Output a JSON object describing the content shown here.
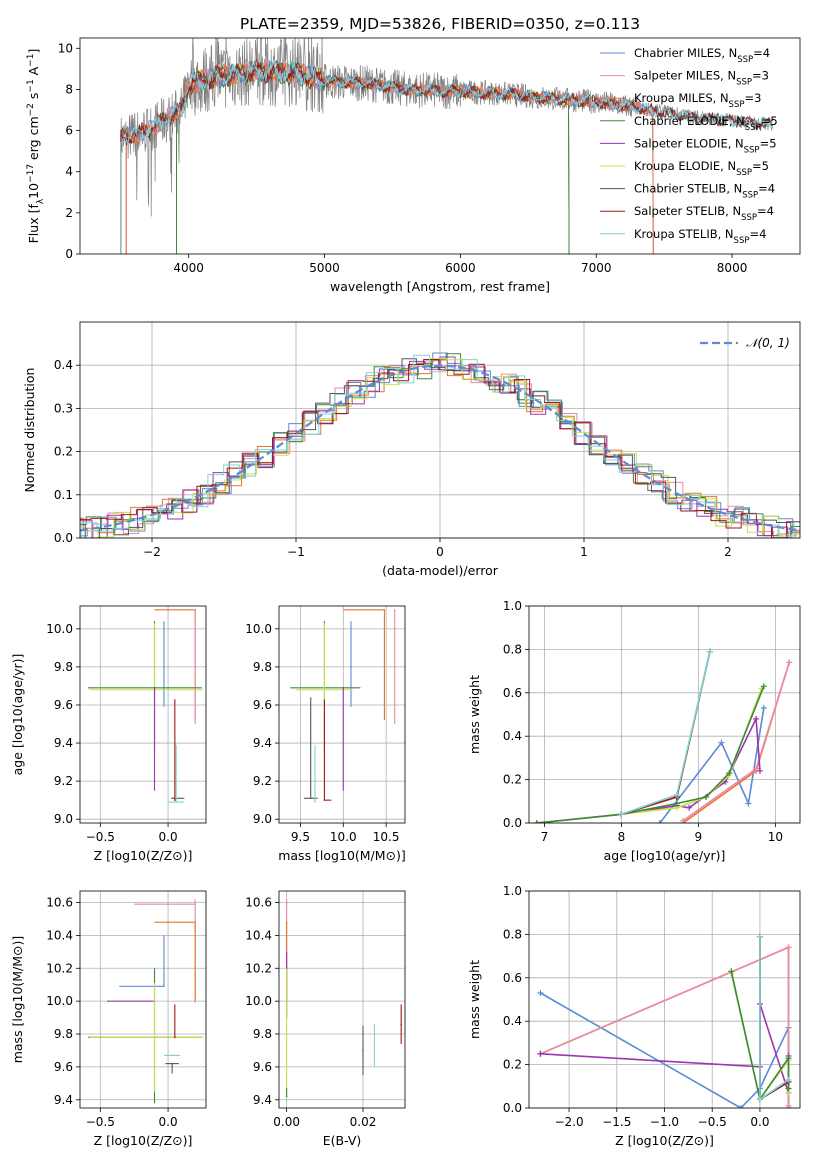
{
  "figure_title": "PLATE=2359, MJD=53826, FIBERID=0350, z=0.113",
  "colors": {
    "chabrier_miles": "#5b8ad8",
    "salpeter_miles": "#e88aa6",
    "kroupa_miles": "#e8742e",
    "chabrier_elodie": "#3a8a3a",
    "salpeter_elodie": "#9a36b0",
    "kroupa_elodie": "#c8e04a",
    "chabrier_stelib": "#555555",
    "salpeter_stelib": "#a01818",
    "kroupa_stelib": "#7ed4d4",
    "gauss": "#5b8ad8",
    "grid": "#b0b0b0"
  },
  "chart_data": [
    {
      "id": "spectrum",
      "type": "line",
      "xlabel": "wavelength [Angstrom, rest frame]",
      "ylabel": "Flux [f_λ 10^-17 erg cm^-2 s^-1 A^-1]",
      "xlim": [
        3200,
        8500
      ],
      "ylim": [
        0,
        10.5
      ],
      "xticks": [
        4000,
        5000,
        6000,
        7000,
        8000
      ],
      "yticks": [
        0,
        2,
        4,
        6,
        8,
        10
      ],
      "grid": false,
      "legend_position": "right",
      "legend": [
        {
          "key": "chabrier_miles",
          "label": "Chabrier MILES, N",
          "sub": "SSP",
          "suffix": "=4"
        },
        {
          "key": "salpeter_miles",
          "label": "Salpeter MILES, N",
          "sub": "SSP",
          "suffix": "=3"
        },
        {
          "key": "kroupa_miles",
          "label": "Kroupa MILES, N",
          "sub": "SSP",
          "suffix": "=3"
        },
        {
          "key": "chabrier_elodie",
          "label": "Chabrier ELODIE, N",
          "sub": "SSP",
          "suffix": "=5"
        },
        {
          "key": "salpeter_elodie",
          "label": "Salpeter ELODIE, N",
          "sub": "SSP",
          "suffix": "=5"
        },
        {
          "key": "kroupa_elodie",
          "label": "Kroupa ELODIE, N",
          "sub": "SSP",
          "suffix": "=5"
        },
        {
          "key": "chabrier_stelib",
          "label": "Chabrier STELIB, N",
          "sub": "SSP",
          "suffix": "=4"
        },
        {
          "key": "salpeter_stelib",
          "label": "Salpeter STELIB, N",
          "sub": "SSP",
          "suffix": "=4"
        },
        {
          "key": "kroupa_stelib",
          "label": "Kroupa STELIB, N",
          "sub": "SSP",
          "suffix": "=4"
        }
      ],
      "continuum": {
        "x": [
          3500,
          3650,
          3800,
          3950,
          4000,
          4200,
          4500,
          4800,
          5000,
          5300,
          5600,
          6000,
          6300,
          6600,
          7000,
          7400,
          7800,
          8300
        ],
        "y": [
          5.6,
          5.9,
          6.4,
          7.0,
          8.3,
          8.6,
          8.9,
          8.8,
          8.4,
          8.3,
          8.0,
          7.9,
          7.8,
          7.6,
          7.4,
          7.0,
          6.6,
          6.3
        ]
      },
      "model_ranges": {
        "chabrier_miles": [
          3540,
          7420
        ],
        "salpeter_miles": [
          3540,
          7420
        ],
        "kroupa_miles": [
          3540,
          7420
        ],
        "kroupa_elodie": [
          3910,
          6800
        ],
        "salpeter_elodie": [
          3910,
          6800
        ],
        "chabrier_elodie": [
          3910,
          6800
        ],
        "chabrier_stelib": [
          3500,
          8300
        ],
        "salpeter_stelib": [
          3500,
          8300
        ],
        "kroupa_stelib": [
          3500,
          8300
        ]
      }
    },
    {
      "id": "residuals",
      "type": "histogram",
      "xlabel": "(data-model)/error",
      "ylabel": "Normed distribution",
      "xlim": [
        -2.5,
        2.5
      ],
      "ylim": [
        0,
        0.5
      ],
      "xticks": [
        -2,
        -1,
        0,
        1,
        2
      ],
      "yticks": [
        0.0,
        0.1,
        0.2,
        0.3,
        0.4
      ],
      "grid": true,
      "gauss_label": "𝒩(0, 1)",
      "gauss_label_prefix": "",
      "legend_position": "top-right"
    },
    {
      "id": "age_vs_Z",
      "type": "errorbar",
      "xlabel": "Z [log10(Z/Z⊙)]",
      "ylabel": "age [log10(age/yr)]",
      "xlim": [
        -0.65,
        0.28
      ],
      "ylim": [
        8.98,
        10.12
      ],
      "xticks": [
        -0.5,
        0.0
      ],
      "yticks": [
        9.0,
        9.2,
        9.4,
        9.6,
        9.8,
        10.0
      ],
      "grid": true,
      "points": [
        {
          "key": "kroupa_miles",
          "x": 0.2,
          "y": 10.1,
          "xerr": [
            0.3,
            0.0
          ],
          "yerr": [
            0.58,
            0.0
          ]
        },
        {
          "key": "salpeter_miles",
          "x": 0.2,
          "y": 10.1,
          "xerr": [
            0.0,
            0.0
          ],
          "yerr": [
            0.6,
            0.0
          ]
        },
        {
          "key": "chabrier_miles",
          "x": -0.03,
          "y": 9.8,
          "xerr": [
            0.0,
            0.0
          ],
          "yerr": [
            0.21,
            0.24
          ]
        },
        {
          "key": "chabrier_elodie",
          "x": -0.1,
          "y": 9.69,
          "xerr": [
            0.49,
            0.35
          ],
          "yerr": [
            0.33,
            0.35
          ]
        },
        {
          "key": "kroupa_elodie",
          "x": -0.1,
          "y": 9.68,
          "xerr": [
            0.48,
            0.36
          ],
          "yerr": [
            0.3,
            0.35
          ]
        },
        {
          "key": "salpeter_elodie",
          "x": -0.1,
          "y": 9.69,
          "xerr": [
            0.0,
            0.0
          ],
          "yerr": [
            0.54,
            0.0
          ]
        },
        {
          "key": "chabrier_stelib",
          "x": 0.03,
          "y": 9.11,
          "xerr": [
            0.0,
            0.09
          ],
          "yerr": [
            0.0,
            0.0
          ]
        },
        {
          "key": "salpeter_stelib",
          "x": 0.05,
          "y": 9.1,
          "xerr": [
            0.0,
            0.0
          ],
          "yerr": [
            0.0,
            0.53
          ]
        },
        {
          "key": "kroupa_stelib",
          "x": 0.06,
          "y": 9.09,
          "xerr": [
            0.06,
            0.06
          ],
          "yerr": [
            0.0,
            0.3
          ]
        }
      ]
    },
    {
      "id": "age_vs_mass",
      "type": "errorbar",
      "xlabel": "mass [log10(M/M⊙)]",
      "ylabel": "",
      "xlim": [
        9.25,
        10.72
      ],
      "ylim": [
        8.98,
        10.12
      ],
      "xticks": [
        9.5,
        10.0,
        10.5
      ],
      "yticks": [
        9.0,
        9.2,
        9.4,
        9.6,
        9.8,
        10.0
      ],
      "grid": true,
      "points": [
        {
          "key": "kroupa_miles",
          "x": 10.48,
          "y": 10.1,
          "xerr": [
            0.48,
            0.0
          ],
          "yerr": [
            0.58,
            0.0
          ]
        },
        {
          "key": "salpeter_miles",
          "x": 10.6,
          "y": 10.1,
          "xerr": [
            0.0,
            0.0
          ],
          "yerr": [
            0.6,
            0.0
          ]
        },
        {
          "key": "chabrier_miles",
          "x": 10.09,
          "y": 9.8,
          "xerr": [
            0.0,
            0.0
          ],
          "yerr": [
            0.21,
            0.24
          ]
        },
        {
          "key": "chabrier_elodie",
          "x": 9.78,
          "y": 9.69,
          "xerr": [
            0.4,
            0.42
          ],
          "yerr": [
            0.33,
            0.35
          ]
        },
        {
          "key": "kroupa_elodie",
          "x": 9.78,
          "y": 9.68,
          "xerr": [
            0.33,
            0.33
          ],
          "yerr": [
            0.3,
            0.35
          ]
        },
        {
          "key": "salpeter_elodie",
          "x": 10.0,
          "y": 9.69,
          "xerr": [
            0.0,
            0.0
          ],
          "yerr": [
            0.54,
            0.0
          ]
        },
        {
          "key": "chabrier_stelib",
          "x": 9.62,
          "y": 9.11,
          "xerr": [
            0.08,
            0.08
          ],
          "yerr": [
            0.0,
            0.53
          ]
        },
        {
          "key": "salpeter_stelib",
          "x": 9.78,
          "y": 9.1,
          "xerr": [
            0.0,
            0.08
          ],
          "yerr": [
            0.0,
            0.53
          ]
        },
        {
          "key": "kroupa_stelib",
          "x": 9.67,
          "y": 9.09,
          "xerr": [
            0.0,
            0.0
          ],
          "yerr": [
            0.0,
            0.3
          ]
        }
      ]
    },
    {
      "id": "weight_vs_age",
      "type": "line",
      "xlabel": "age [log10(age/yr)]",
      "ylabel": "mass weight",
      "xlim": [
        6.8,
        10.32
      ],
      "ylim": [
        0,
        1.0
      ],
      "xticks": [
        7,
        8,
        9,
        10
      ],
      "yticks": [
        0.0,
        0.2,
        0.4,
        0.6,
        0.8,
        1.0
      ],
      "grid": true,
      "series": [
        {
          "key": "chabrier_miles",
          "x": [
            8.5,
            9.3,
            9.65,
            9.85
          ],
          "y": [
            0.0,
            0.37,
            0.09,
            0.53
          ]
        },
        {
          "key": "kroupa_miles",
          "x": [
            8.8,
            9.75,
            10.18
          ],
          "y": [
            0.0,
            0.24,
            0.74
          ]
        },
        {
          "key": "salpeter_miles",
          "x": [
            8.8,
            9.75,
            10.18
          ],
          "y": [
            0.01,
            0.25,
            0.74
          ]
        },
        {
          "key": "salpeter_elodie",
          "x": [
            6.9,
            8.0,
            8.72,
            8.88,
            9.35,
            9.75,
            9.8
          ],
          "y": [
            0.0,
            0.04,
            0.08,
            0.07,
            0.19,
            0.48,
            0.24
          ]
        },
        {
          "key": "kroupa_elodie",
          "x": [
            6.9,
            8.0,
            8.72,
            9.1,
            9.4,
            9.82
          ],
          "y": [
            0.0,
            0.04,
            0.07,
            0.12,
            0.22,
            0.62
          ]
        },
        {
          "key": "chabrier_elodie",
          "x": [
            6.9,
            8.0,
            8.72,
            9.1,
            9.4,
            9.85
          ],
          "y": [
            0.0,
            0.04,
            0.09,
            0.12,
            0.23,
            0.63
          ]
        },
        {
          "key": "chabrier_stelib",
          "x": [
            8.0,
            8.72,
            9.15
          ],
          "y": [
            0.04,
            0.12,
            0.79
          ]
        },
        {
          "key": "salpeter_stelib",
          "x": [
            8.0,
            8.72,
            9.15
          ],
          "y": [
            0.04,
            0.12,
            0.79
          ]
        },
        {
          "key": "kroupa_stelib",
          "x": [
            8.0,
            8.72,
            9.15
          ],
          "y": [
            0.04,
            0.13,
            0.79
          ]
        }
      ]
    },
    {
      "id": "mass_vs_Z",
      "type": "errorbar",
      "xlabel": "Z [log10(Z/Z⊙)]",
      "ylabel": "mass [log10(M/M⊙)]",
      "xlim": [
        -0.65,
        0.28
      ],
      "ylim": [
        9.35,
        10.67
      ],
      "xticks": [
        -0.5,
        0.0
      ],
      "yticks": [
        9.4,
        9.6,
        9.8,
        10.0,
        10.2,
        10.4,
        10.6
      ],
      "grid": true,
      "points": [
        {
          "key": "salpeter_miles",
          "x": 0.2,
          "y": 10.59,
          "xerr": [
            0.45,
            0.0
          ],
          "yerr": [
            0.6,
            0.03
          ]
        },
        {
          "key": "kroupa_miles",
          "x": 0.2,
          "y": 10.48,
          "xerr": [
            0.3,
            0.0
          ],
          "yerr": [
            0.48,
            0.0
          ]
        },
        {
          "key": "chabrier_miles",
          "x": -0.03,
          "y": 10.09,
          "xerr": [
            0.33,
            0.0
          ],
          "yerr": [
            0.0,
            0.31
          ]
        },
        {
          "key": "salpeter_elodie",
          "x": -0.1,
          "y": 10.0,
          "xerr": [
            0.35,
            0.0
          ],
          "yerr": [
            0.0,
            0.0
          ]
        },
        {
          "key": "chabrier_elodie",
          "x": -0.1,
          "y": 9.78,
          "xerr": [
            0.49,
            0.35
          ],
          "yerr": [
            0.4,
            0.42
          ]
        },
        {
          "key": "kroupa_elodie",
          "x": -0.1,
          "y": 9.78,
          "xerr": [
            0.48,
            0.36
          ],
          "yerr": [
            0.33,
            0.33
          ]
        },
        {
          "key": "chabrier_stelib",
          "x": 0.03,
          "y": 9.62,
          "xerr": [
            0.05,
            0.05
          ],
          "yerr": [
            0.06,
            0.0
          ]
        },
        {
          "key": "salpeter_stelib",
          "x": 0.05,
          "y": 9.78,
          "xerr": [
            0.0,
            0.0
          ],
          "yerr": [
            0.0,
            0.2
          ]
        },
        {
          "key": "kroupa_stelib",
          "x": 0.03,
          "y": 9.67,
          "xerr": [
            0.06,
            0.06
          ],
          "yerr": [
            0.0,
            0.0
          ]
        }
      ]
    },
    {
      "id": "mass_vs_ebv",
      "type": "errorbar",
      "xlabel": "E(B-V)",
      "ylabel": "",
      "xlim": [
        -0.002,
        0.031
      ],
      "ylim": [
        9.35,
        10.67
      ],
      "xticks": [
        0.0,
        0.02
      ],
      "yticks": [
        9.4,
        9.6,
        9.8,
        10.0,
        10.2,
        10.4,
        10.6
      ],
      "grid": true,
      "points": [
        {
          "key": "salpeter_miles",
          "x": 0.0,
          "y": 10.59,
          "xerr": [
            0.0,
            0.0
          ],
          "yerr": [
            0.6,
            0.03
          ]
        },
        {
          "key": "kroupa_miles",
          "x": 0.0,
          "y": 10.48,
          "xerr": [
            0.0,
            0.0
          ],
          "yerr": [
            0.48,
            0.0
          ]
        },
        {
          "key": "salpeter_elodie",
          "x": 0.0,
          "y": 10.2,
          "xerr": [
            0.0,
            0.0
          ],
          "yerr": [
            0.3,
            0.1
          ]
        },
        {
          "key": "kroupa_elodie",
          "x": 0.0,
          "y": 9.9,
          "xerr": [
            0.0,
            0.0
          ],
          "yerr": [
            0.45,
            0.3
          ]
        },
        {
          "key": "chabrier_elodie",
          "x": 0.0,
          "y": 9.42,
          "xerr": [
            0.0,
            0.0
          ],
          "yerr": [
            0.0,
            0.05
          ]
        },
        {
          "key": "chabrier_stelib",
          "x": 0.02,
          "y": 9.7,
          "xerr": [
            0.0,
            0.0
          ],
          "yerr": [
            0.15,
            0.15
          ]
        },
        {
          "key": "kroupa_stelib",
          "x": 0.023,
          "y": 9.73,
          "xerr": [
            0.0,
            0.0
          ],
          "yerr": [
            0.13,
            0.13
          ]
        },
        {
          "key": "salpeter_stelib",
          "x": 0.03,
          "y": 9.86,
          "xerr": [
            0.0,
            0.0
          ],
          "yerr": [
            0.12,
            0.12
          ]
        }
      ]
    },
    {
      "id": "weight_vs_Z",
      "type": "line",
      "xlabel": "Z [log10(Z/Z⊙)]",
      "ylabel": "mass weight",
      "xlim": [
        -2.42,
        0.42
      ],
      "ylim": [
        0,
        1.0
      ],
      "xticks": [
        -2.0,
        -1.5,
        -1.0,
        -0.5,
        0.0
      ],
      "yticks": [
        0.0,
        0.2,
        0.4,
        0.6,
        0.8,
        1.0
      ],
      "grid": true,
      "series": [
        {
          "key": "chabrier_miles",
          "x": [
            -2.3,
            -0.2,
            0.0,
            0.3,
            0.3
          ],
          "y": [
            0.53,
            0.0,
            0.09,
            0.37,
            0.0
          ]
        },
        {
          "key": "kroupa_miles",
          "x": [
            -2.3,
            0.3,
            0.3
          ],
          "y": [
            0.25,
            0.74,
            0.0
          ]
        },
        {
          "key": "salpeter_miles",
          "x": [
            -2.3,
            0.3,
            0.3
          ],
          "y": [
            0.25,
            0.74,
            0.01
          ]
        },
        {
          "key": "salpeter_elodie",
          "x": [
            -2.3,
            0.0,
            0.0,
            0.3,
            0.3
          ],
          "y": [
            0.25,
            0.19,
            0.48,
            0.07,
            0.24
          ]
        },
        {
          "key": "kroupa_elodie",
          "x": [
            -0.3,
            0.0,
            0.3,
            0.3
          ],
          "y": [
            0.62,
            0.04,
            0.22,
            0.07
          ]
        },
        {
          "key": "chabrier_elodie",
          "x": [
            -0.3,
            0.0,
            0.3,
            0.3
          ],
          "y": [
            0.63,
            0.04,
            0.23,
            0.09
          ]
        },
        {
          "key": "chabrier_stelib",
          "x": [
            0.0,
            0.0,
            0.3
          ],
          "y": [
            0.79,
            0.04,
            0.12
          ]
        },
        {
          "key": "salpeter_stelib",
          "x": [
            0.0,
            0.0,
            0.3
          ],
          "y": [
            0.79,
            0.04,
            0.12
          ]
        },
        {
          "key": "kroupa_stelib",
          "x": [
            0.0,
            0.0,
            0.3
          ],
          "y": [
            0.79,
            0.04,
            0.13
          ]
        }
      ]
    }
  ]
}
